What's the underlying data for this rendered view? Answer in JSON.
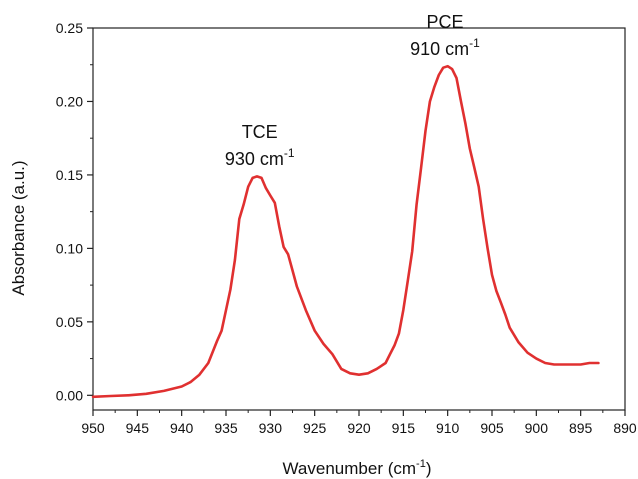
{
  "chart_data": {
    "type": "line",
    "xlabel": "Wavenumber (cm",
    "xlabel_sup": "-1",
    "xlabel_end": ")",
    "ylabel": "Absorbance (a.u.)",
    "xlim": [
      950,
      890
    ],
    "ylim": [
      -0.01,
      0.25
    ],
    "x_ticks": [
      950,
      945,
      940,
      935,
      930,
      925,
      920,
      915,
      910,
      905,
      900,
      895,
      890
    ],
    "y_ticks": [
      0.0,
      0.05,
      0.1,
      0.15,
      0.2,
      0.25
    ],
    "y_tick_labels": [
      "0.00",
      "0.05",
      "0.10",
      "0.15",
      "0.20",
      "0.25"
    ],
    "grid": false,
    "line_color": "#e03030",
    "series": [
      {
        "x": [
          950,
          948,
          946,
          944,
          942,
          940,
          939,
          938,
          937,
          936,
          935.5,
          935,
          934.5,
          934,
          933.5,
          933,
          932.5,
          932,
          931.5,
          931,
          930.5,
          930,
          929.5,
          929,
          928.5,
          928,
          927.5,
          927,
          926,
          925,
          924,
          923,
          922,
          921,
          920,
          919,
          918,
          917,
          916.5,
          916,
          915.5,
          915,
          914.5,
          914,
          913.5,
          913,
          912.5,
          912,
          911.5,
          911,
          910.5,
          910,
          909.5,
          909,
          908.5,
          908,
          907.5,
          907,
          906.5,
          906,
          905.5,
          905,
          904.5,
          904,
          903.5,
          903,
          902,
          901,
          900,
          899,
          898,
          897,
          896,
          895,
          894,
          893
        ],
        "y": [
          -0.001,
          -0.0005,
          0.0,
          0.001,
          0.003,
          0.006,
          0.009,
          0.014,
          0.022,
          0.037,
          0.044,
          0.058,
          0.072,
          0.092,
          0.12,
          0.13,
          0.142,
          0.148,
          0.149,
          0.148,
          0.141,
          0.136,
          0.131,
          0.115,
          0.101,
          0.096,
          0.085,
          0.074,
          0.058,
          0.044,
          0.035,
          0.028,
          0.018,
          0.015,
          0.014,
          0.015,
          0.018,
          0.022,
          0.028,
          0.034,
          0.042,
          0.058,
          0.078,
          0.098,
          0.13,
          0.155,
          0.18,
          0.2,
          0.21,
          0.218,
          0.223,
          0.224,
          0.222,
          0.216,
          0.2,
          0.185,
          0.168,
          0.155,
          0.142,
          0.12,
          0.1,
          0.082,
          0.071,
          0.063,
          0.055,
          0.046,
          0.036,
          0.029,
          0.025,
          0.022,
          0.021,
          0.021,
          0.021,
          0.021,
          0.022,
          0.022
        ]
      }
    ],
    "annotations": [
      {
        "line1": "TCE",
        "line2": "930 cm",
        "sup": "-1",
        "x": 931.2,
        "y": 0.175
      },
      {
        "line1": "PCE",
        "line2": "910 cm",
        "sup": "-1",
        "x": 910.3,
        "y": 0.25
      }
    ]
  }
}
